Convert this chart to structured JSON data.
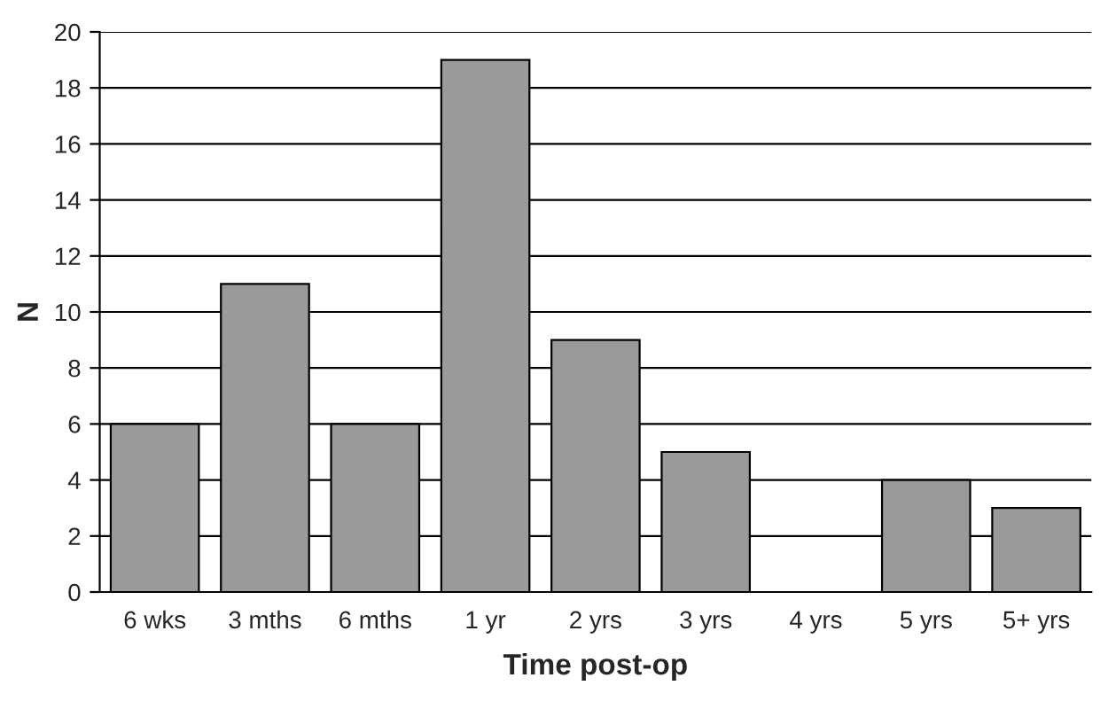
{
  "chart_data": {
    "type": "bar",
    "xlabel": "Time post-op",
    "ylabel": "N",
    "categories": [
      "6 wks",
      "3 mths",
      "6 mths",
      "1 yr",
      "2 yrs",
      "3 yrs",
      "4 yrs",
      "5 yrs",
      "5+ yrs"
    ],
    "values": [
      6,
      11,
      6,
      19,
      9,
      5,
      0,
      4,
      3
    ],
    "color": "#9a9a9a",
    "ylim": [
      0,
      20
    ],
    "yticks": [
      0,
      2,
      4,
      6,
      8,
      10,
      12,
      14,
      16,
      18,
      20
    ],
    "grid": "y"
  }
}
